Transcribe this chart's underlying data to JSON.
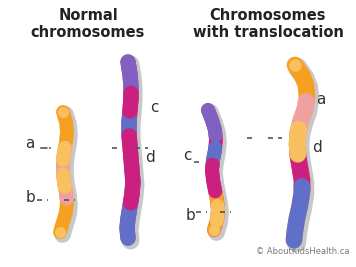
{
  "title_left": "Normal\nchromosomes",
  "title_right": "Chromosomes\nwith translocation",
  "background_color": "#ffffff",
  "title_fontsize": 10.5,
  "label_fontsize": 11,
  "copyright": "© AboutKidsHealth.ca",
  "colors": {
    "orange": "#F5A020",
    "light_orange": "#F9C060",
    "pink": "#F0A0A0",
    "magenta": "#CC2080",
    "purple": "#8060C0",
    "blue_purple": "#6070C8",
    "dark_purple": "#7050A8"
  },
  "shadow": "#c8c8c8"
}
